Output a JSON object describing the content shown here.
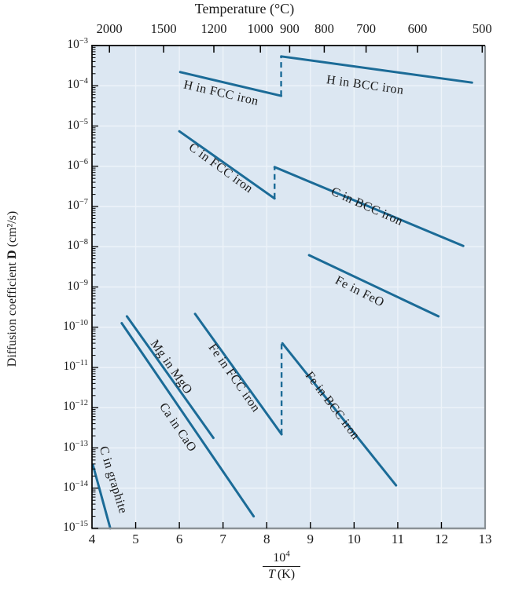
{
  "figure": {
    "title": "Temperature (°C)",
    "ylabel": {
      "pre": "Diffusion coefficient",
      "bold": "D",
      "post": "(cm²/s)"
    },
    "xlabel": {
      "base": "10",
      "exp": "4",
      "den_var": "T",
      "den_unit": "(K)"
    }
  },
  "chart_data": {
    "type": "line",
    "title": "Temperature (°C)",
    "xlabel": "10^4 / T (K)",
    "ylabel": "Diffusion coefficient D (cm^2/s)",
    "y_scale": "log",
    "x_axis": {
      "min": 4,
      "max": 13,
      "ticks": [
        4,
        5,
        6,
        7,
        8,
        9,
        10,
        11,
        12,
        13
      ]
    },
    "y_axis": {
      "exponent_max": -3,
      "exponent_min": -15,
      "tick_exponents": [
        -3,
        -4,
        -5,
        -6,
        -7,
        -8,
        -9,
        -10,
        -11,
        -12,
        -13,
        -14,
        -15
      ]
    },
    "top_axis": {
      "label": "Temperature (°C)",
      "ticks": [
        {
          "label": "2000",
          "value": 4.399
        },
        {
          "label": "1500",
          "value": 5.64
        },
        {
          "label": "1200",
          "value": 6.79
        },
        {
          "label": "1000",
          "value": 7.855
        },
        {
          "label": "900",
          "value": 8.525
        },
        {
          "label": "800",
          "value": 9.318
        },
        {
          "label": "700",
          "value": 10.275
        },
        {
          "label": "600",
          "value": 11.452
        },
        {
          "label": "500",
          "value": 12.933
        }
      ]
    },
    "grid_x": [
      5,
      6,
      7,
      8,
      9,
      10,
      11,
      12
    ],
    "grid_y_exponents": [
      -4,
      -5,
      -6,
      -7,
      -8,
      -9,
      -10,
      -11,
      -12,
      -13,
      -14
    ],
    "series": [
      {
        "name": "H in FCC iron",
        "points": [
          [
            6.02,
            -3.66
          ],
          [
            8.33,
            -4.25
          ]
        ],
        "label_pos": [
          6.95,
          -4.2
        ],
        "label_angle": 13
      },
      {
        "name": "H in BCC iron",
        "points": [
          [
            8.33,
            -3.27
          ],
          [
            12.7,
            -3.92
          ]
        ],
        "label_pos": [
          10.25,
          -4.0
        ],
        "label_angle": 8
      },
      {
        "name": "C in FCC iron",
        "points": [
          [
            6.0,
            -5.13
          ],
          [
            8.18,
            -6.8
          ]
        ],
        "label_pos": [
          6.94,
          -6.06
        ],
        "label_angle": 36
      },
      {
        "name": "C in BCC iron",
        "points": [
          [
            8.18,
            -6.02
          ],
          [
            12.5,
            -7.98
          ]
        ],
        "label_pos": [
          10.29,
          -7.02
        ],
        "label_angle": 24
      },
      {
        "name": "Fe in FeO",
        "points": [
          [
            8.97,
            -8.21
          ],
          [
            11.93,
            -9.73
          ]
        ],
        "label_pos": [
          10.12,
          -9.13
        ],
        "label_angle": 27
      },
      {
        "name": "Fe in FCC iron",
        "points": [
          [
            6.36,
            -9.67
          ],
          [
            8.34,
            -12.66
          ]
        ],
        "label_pos": [
          7.24,
          -11.27
        ],
        "label_angle": 55
      },
      {
        "name": "Fe in BCC iron",
        "points": [
          [
            8.36,
            -10.4
          ],
          [
            10.96,
            -13.93
          ]
        ],
        "label_pos": [
          9.49,
          -11.96
        ],
        "label_angle": 53
      },
      {
        "name": "Mg in MgO",
        "points": [
          [
            4.8,
            -9.73
          ],
          [
            6.78,
            -12.75
          ]
        ],
        "label_pos": [
          5.8,
          -11.0
        ],
        "label_angle": 55
      },
      {
        "name": "Ca in CaO",
        "points": [
          [
            4.68,
            -9.9
          ],
          [
            7.7,
            -14.7
          ]
        ],
        "label_pos": [
          5.95,
          -12.5
        ],
        "label_angle": 56
      },
      {
        "name": "C in graphite",
        "points": [
          [
            4.02,
            -13.42
          ],
          [
            4.42,
            -15.0
          ]
        ],
        "label_pos": [
          4.47,
          -13.8
        ],
        "label_angle": 73
      }
    ],
    "dashed_connectors": [
      {
        "x": 8.33,
        "from": -4.25,
        "to": -3.27
      },
      {
        "x": 8.18,
        "from": -6.8,
        "to": -6.02
      },
      {
        "x": 8.34,
        "from": -12.66,
        "to": -10.4
      }
    ],
    "colors": {
      "line": "#1b6b97",
      "plot_bg": "#dce7f2",
      "grid": "#edf3f9",
      "axis": "#000000",
      "border_gray": "#8a9196",
      "text": "#1b1b1b"
    }
  }
}
